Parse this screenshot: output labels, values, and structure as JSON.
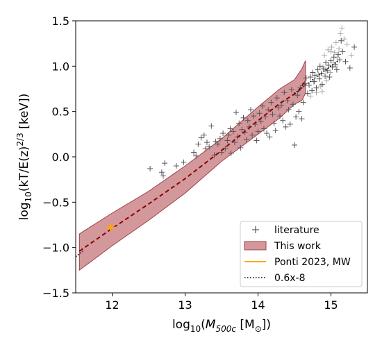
{
  "chart_data": {
    "type": "scatter",
    "xlabel_prefix": "log",
    "xlabel_sub": "10",
    "xlabel_body_open": "(",
    "xlabel_var": "M",
    "xlabel_var_sub": "500c",
    "xlabel_unit_open": " [M",
    "xlabel_unit_sub": "⊙",
    "xlabel_unit_close": "])",
    "ylabel_prefix": "log",
    "ylabel_sub": "10",
    "ylabel_body": "(kT/E(z)",
    "ylabel_sup": "2/3",
    "ylabel_unit": " [keV])",
    "xlim": [
      11.5,
      15.5
    ],
    "ylim": [
      -1.5,
      1.5
    ],
    "xticks": [
      "12",
      "13",
      "14",
      "15"
    ],
    "xtick_values": [
      12,
      13,
      14,
      15
    ],
    "yticks": [
      "1.5",
      "1.0",
      "0.5",
      "0.0",
      "−0.5",
      "−1.0",
      "−1.5"
    ],
    "ytick_values": [
      1.5,
      1.0,
      0.5,
      0.0,
      -0.5,
      -1.0,
      -1.5
    ],
    "legend_position": "lower right",
    "legend": [
      {
        "label": "literature",
        "marker": "plus",
        "color": "#555555"
      },
      {
        "label": "This work",
        "marker": "patch",
        "color": "#c06a6e"
      },
      {
        "label": "Ponti 2023, MW",
        "marker": "line",
        "color": "#ffa500"
      },
      {
        "label": "0.6x-8",
        "marker": "dotted",
        "color": "#000000"
      }
    ],
    "series": [
      {
        "name": "literature",
        "marker": "+",
        "color": "#555555",
        "points": [
          [
            12.52,
            -0.13
          ],
          [
            12.68,
            -0.17
          ],
          [
            12.7,
            -0.21
          ],
          [
            12.72,
            -0.07
          ],
          [
            12.88,
            -0.1
          ],
          [
            12.98,
            -0.06
          ],
          [
            13.12,
            0.05
          ],
          [
            13.15,
            0.01
          ],
          [
            13.18,
            0.14
          ],
          [
            13.22,
            0.21
          ],
          [
            13.26,
            0.24
          ],
          [
            13.28,
            0.09
          ],
          [
            13.3,
            0.16
          ],
          [
            13.33,
            0.11
          ],
          [
            13.36,
            0.34
          ],
          [
            13.4,
            0.02
          ],
          [
            13.42,
            0.17
          ],
          [
            13.45,
            0.14
          ],
          [
            13.48,
            0.2
          ],
          [
            13.5,
            0.05
          ],
          [
            13.52,
            0.26
          ],
          [
            13.55,
            0.09
          ],
          [
            13.58,
            0.18
          ],
          [
            13.6,
            0.24
          ],
          [
            13.62,
            0.31
          ],
          [
            13.63,
            0.04
          ],
          [
            13.66,
            0.28
          ],
          [
            13.68,
            0.16
          ],
          [
            13.7,
            0.49
          ],
          [
            13.72,
            0.22
          ],
          [
            13.74,
            0.37
          ],
          [
            13.76,
            0.1
          ],
          [
            13.78,
            0.3
          ],
          [
            13.8,
            0.43
          ],
          [
            13.82,
            0.27
          ],
          [
            13.84,
            0.19
          ],
          [
            13.86,
            0.4
          ],
          [
            13.88,
            0.33
          ],
          [
            13.9,
            0.52
          ],
          [
            13.92,
            0.24
          ],
          [
            13.94,
            0.45
          ],
          [
            13.96,
            0.36
          ],
          [
            13.98,
            0.18
          ],
          [
            14.0,
            0.28
          ],
          [
            14.02,
            0.48
          ],
          [
            14.04,
            0.39
          ],
          [
            14.06,
            0.56
          ],
          [
            14.08,
            0.31
          ],
          [
            14.1,
            0.44
          ],
          [
            14.12,
            0.26
          ],
          [
            14.14,
            0.52
          ],
          [
            14.16,
            0.22
          ],
          [
            14.18,
            0.6
          ],
          [
            14.2,
            0.47
          ],
          [
            14.22,
            0.37
          ],
          [
            14.24,
            0.29
          ],
          [
            14.26,
            0.65
          ],
          [
            14.28,
            0.54
          ],
          [
            14.3,
            0.45
          ],
          [
            14.32,
            0.57
          ],
          [
            14.34,
            0.4
          ],
          [
            14.36,
            0.71
          ],
          [
            14.38,
            0.33
          ],
          [
            14.4,
            0.62
          ],
          [
            14.42,
            0.52
          ],
          [
            14.44,
            0.36
          ],
          [
            14.46,
            0.74
          ],
          [
            14.48,
            0.58
          ],
          [
            14.5,
            0.13
          ],
          [
            14.52,
            0.44
          ],
          [
            14.54,
            0.68
          ],
          [
            14.56,
            0.5
          ],
          [
            14.58,
            0.76
          ],
          [
            14.6,
            0.42
          ],
          [
            14.62,
            0.6
          ],
          [
            14.64,
            0.81
          ],
          [
            14.66,
            0.87
          ],
          [
            14.68,
            0.7
          ],
          [
            14.7,
            0.79
          ],
          [
            14.72,
            0.88
          ],
          [
            14.74,
            0.73
          ],
          [
            14.75,
            0.93
          ],
          [
            14.77,
            0.83
          ],
          [
            14.78,
            0.9
          ],
          [
            14.8,
            0.76
          ],
          [
            14.82,
            0.96
          ],
          [
            14.84,
            0.86
          ],
          [
            14.85,
            1.0
          ],
          [
            14.87,
            0.92
          ],
          [
            14.88,
            0.8
          ],
          [
            14.9,
            0.97
          ],
          [
            14.92,
            0.89
          ],
          [
            14.93,
            1.04
          ],
          [
            14.95,
            0.95
          ],
          [
            14.97,
            1.01
          ],
          [
            14.98,
            0.88
          ],
          [
            15.0,
            1.06
          ],
          [
            15.02,
            0.99
          ],
          [
            15.04,
            1.1
          ],
          [
            15.06,
            1.02
          ],
          [
            15.08,
            0.96
          ],
          [
            15.1,
            1.13
          ],
          [
            15.12,
            1.07
          ],
          [
            15.14,
            1.28
          ],
          [
            15.16,
            1.16
          ],
          [
            15.2,
            1.05
          ],
          [
            15.26,
            0.98
          ],
          [
            15.32,
            1.21
          ]
        ]
      },
      {
        "name": "literature",
        "marker": "+",
        "color": "#aaaaaa",
        "points": [
          [
            14.72,
            0.67
          ],
          [
            14.76,
            0.83
          ],
          [
            14.8,
            0.71
          ],
          [
            14.83,
            0.91
          ],
          [
            14.86,
            0.78
          ],
          [
            14.89,
            0.99
          ],
          [
            14.91,
            1.12
          ],
          [
            14.94,
            0.84
          ],
          [
            14.96,
            1.18
          ],
          [
            14.99,
            0.93
          ],
          [
            15.01,
            1.21
          ],
          [
            15.03,
            1.04
          ],
          [
            15.05,
            1.15
          ],
          [
            15.07,
            1.26
          ],
          [
            15.09,
            1.09
          ],
          [
            15.11,
            1.19
          ],
          [
            15.13,
            1.36
          ],
          [
            15.15,
            1.42
          ],
          [
            15.18,
            1.3
          ],
          [
            15.22,
            1.24
          ],
          [
            15.28,
            1.12
          ],
          [
            14.88,
            0.72
          ],
          [
            14.93,
            0.96
          ],
          [
            15.0,
            1.16
          ],
          [
            15.06,
            1.0
          ]
        ]
      }
    ],
    "band": {
      "name": "This work",
      "x": [
        11.55,
        12.0,
        12.5,
        13.0,
        13.5,
        14.0,
        14.3,
        14.5,
        14.6,
        14.65
      ],
      "upper": [
        -0.85,
        -0.62,
        -0.38,
        -0.1,
        0.2,
        0.55,
        0.75,
        0.85,
        0.97,
        1.06
      ],
      "lower": [
        -1.25,
        -0.98,
        -0.7,
        -0.4,
        -0.05,
        0.25,
        0.43,
        0.58,
        0.62,
        0.7
      ],
      "color": "#b5545a"
    },
    "median_line": {
      "x": [
        11.55,
        12.0,
        12.5,
        13.0,
        13.5,
        14.0,
        14.3,
        14.55,
        14.65
      ],
      "y": [
        -1.04,
        -0.79,
        -0.52,
        -0.24,
        0.07,
        0.4,
        0.59,
        0.72,
        0.84
      ],
      "color": "#8b0000"
    },
    "mw_point": {
      "x": 11.98,
      "y": -0.78,
      "xerr": 0.07,
      "yerr": 0.04,
      "color": "#ffa500"
    },
    "dotted_line": {
      "slope": 0.6,
      "intercept": -8.0,
      "segments": [
        [
          11.5,
          11.6
        ],
        [
          14.5,
          15.1
        ]
      ],
      "color": "#000000"
    }
  }
}
